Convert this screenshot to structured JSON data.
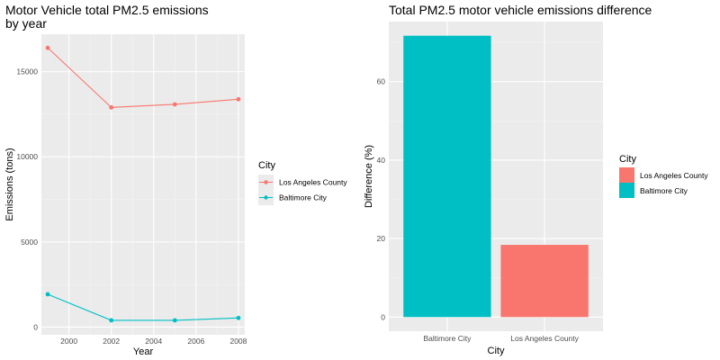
{
  "chart_data": [
    {
      "type": "line",
      "title_line1": "Motor Vehicle total PM2.5 emissions",
      "title_line2": "by year",
      "xlabel": "Year",
      "ylabel": "Emissions (tons)",
      "x_ticks": [
        "2000",
        "2002",
        "2004",
        "2006",
        "2008"
      ],
      "y_ticks": [
        "0",
        "5000",
        "10000",
        "15000"
      ],
      "xlim": [
        1998.7,
        2008.3
      ],
      "ylim": [
        -450,
        17200
      ],
      "x": [
        1999,
        2002,
        2005,
        2008
      ],
      "series": [
        {
          "name": "Los Angeles County",
          "color": "#F8766D",
          "values": [
            16400,
            12900,
            13080,
            13380
          ]
        },
        {
          "name": "Baltimore City",
          "color": "#00BFC4",
          "values": [
            1930,
            400,
            400,
            540
          ]
        }
      ],
      "legend": {
        "title": "City",
        "position": "right",
        "items": [
          "Los Angeles County",
          "Baltimore City"
        ]
      },
      "grid": true
    },
    {
      "type": "bar",
      "title": "Total PM2.5 motor vehicle emissions difference",
      "xlabel": "City",
      "ylabel": "Difference (%)",
      "categories": [
        "Baltimore City",
        "Los Angeles County"
      ],
      "values": [
        71.7,
        18.4
      ],
      "colors": [
        "#00BFC4",
        "#F8766D"
      ],
      "y_ticks": [
        "0",
        "20",
        "40",
        "60"
      ],
      "ylim": [
        -3.6,
        75.3
      ],
      "legend": {
        "title": "City",
        "position": "right",
        "items": [
          "Los Angeles County",
          "Baltimore City"
        ],
        "colors": [
          "#F8766D",
          "#00BFC4"
        ]
      },
      "grid": true
    }
  ]
}
